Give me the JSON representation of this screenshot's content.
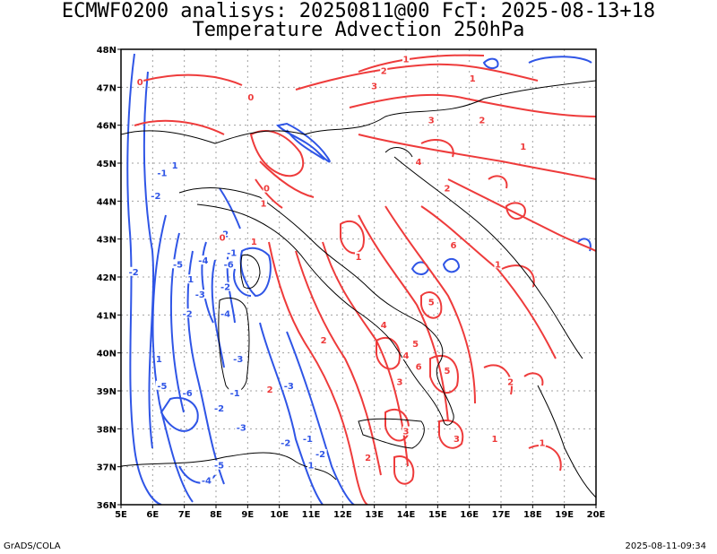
{
  "header": {
    "title_line1": "ECMWF0200 analisys: 20250811@00 FcT: 2025-08-13+18",
    "title_line2": "Temperature Advection 250hPa"
  },
  "footer": {
    "credit": "GrADS/COLA",
    "timestamp": "2025-08-11-09:34"
  },
  "map": {
    "lon_range": [
      5,
      20
    ],
    "lat_range": [
      36,
      48
    ],
    "lon_ticks": [
      "5E",
      "6E",
      "7E",
      "8E",
      "9E",
      "10E",
      "11E",
      "12E",
      "13E",
      "14E",
      "15E",
      "16E",
      "17E",
      "18E",
      "19E",
      "20E"
    ],
    "lat_ticks": [
      "36N",
      "37N",
      "38N",
      "39N",
      "40N",
      "41N",
      "42N",
      "43N",
      "44N",
      "45N",
      "46N",
      "47N",
      "48N"
    ],
    "grid": true,
    "colors": {
      "positive": "#ee3b3b",
      "negative": "#2f55e6",
      "coast": "#000000",
      "grid": "#a0a0a0"
    },
    "contour_labels": [
      {
        "t": "1",
        "lon": 14.0,
        "lat": 47.7,
        "c": "pos"
      },
      {
        "t": "2",
        "lon": 13.3,
        "lat": 47.4,
        "c": "pos"
      },
      {
        "t": "3",
        "lon": 13.0,
        "lat": 47.0,
        "c": "pos"
      },
      {
        "t": "1",
        "lon": 16.1,
        "lat": 47.2,
        "c": "pos"
      },
      {
        "t": "0",
        "lon": 5.6,
        "lat": 47.1,
        "c": "pos"
      },
      {
        "t": "0",
        "lon": 9.1,
        "lat": 46.7,
        "c": "pos"
      },
      {
        "t": "3",
        "lon": 14.8,
        "lat": 46.1,
        "c": "pos"
      },
      {
        "t": "2",
        "lon": 16.4,
        "lat": 46.1,
        "c": "pos"
      },
      {
        "t": "1",
        "lon": 17.7,
        "lat": 45.4,
        "c": "pos"
      },
      {
        "t": "4",
        "lon": 14.4,
        "lat": 45.0,
        "c": "pos"
      },
      {
        "t": "2",
        "lon": 15.3,
        "lat": 44.3,
        "c": "pos"
      },
      {
        "t": "1",
        "lon": 6.7,
        "lat": 44.9,
        "c": "neg"
      },
      {
        "t": "-1",
        "lon": 6.3,
        "lat": 44.7,
        "c": "neg"
      },
      {
        "t": "-2",
        "lon": 6.1,
        "lat": 44.1,
        "c": "neg"
      },
      {
        "t": "0",
        "lon": 9.6,
        "lat": 44.3,
        "c": "pos"
      },
      {
        "t": "1",
        "lon": 9.5,
        "lat": 43.9,
        "c": "pos"
      },
      {
        "t": "2",
        "lon": 8.3,
        "lat": 43.1,
        "c": "neg"
      },
      {
        "t": "0",
        "lon": 8.2,
        "lat": 43.0,
        "c": "pos"
      },
      {
        "t": "1",
        "lon": 9.2,
        "lat": 42.9,
        "c": "pos"
      },
      {
        "t": "-1",
        "lon": 8.5,
        "lat": 42.6,
        "c": "neg"
      },
      {
        "t": "-5",
        "lon": 6.8,
        "lat": 42.3,
        "c": "neg"
      },
      {
        "t": "-4",
        "lon": 7.6,
        "lat": 42.4,
        "c": "neg"
      },
      {
        "t": "-6",
        "lon": 8.4,
        "lat": 42.3,
        "c": "neg"
      },
      {
        "t": "-2",
        "lon": 5.4,
        "lat": 42.1,
        "c": "neg"
      },
      {
        "t": "1",
        "lon": 12.5,
        "lat": 42.5,
        "c": "pos"
      },
      {
        "t": "6",
        "lon": 15.5,
        "lat": 42.8,
        "c": "pos"
      },
      {
        "t": "1",
        "lon": 16.9,
        "lat": 42.3,
        "c": "pos"
      },
      {
        "t": "1",
        "lon": 7.2,
        "lat": 41.9,
        "c": "neg"
      },
      {
        "t": "-2",
        "lon": 8.3,
        "lat": 41.7,
        "c": "neg"
      },
      {
        "t": "-3",
        "lon": 7.5,
        "lat": 41.5,
        "c": "neg"
      },
      {
        "t": "-2",
        "lon": 7.1,
        "lat": 41.0,
        "c": "neg"
      },
      {
        "t": "-4",
        "lon": 8.3,
        "lat": 41.0,
        "c": "neg"
      },
      {
        "t": "5",
        "lon": 14.8,
        "lat": 41.3,
        "c": "pos"
      },
      {
        "t": "4",
        "lon": 13.3,
        "lat": 40.7,
        "c": "pos"
      },
      {
        "t": "2",
        "lon": 11.4,
        "lat": 40.3,
        "c": "pos"
      },
      {
        "t": "5",
        "lon": 14.3,
        "lat": 40.2,
        "c": "pos"
      },
      {
        "t": "4",
        "lon": 14.0,
        "lat": 39.9,
        "c": "pos"
      },
      {
        "t": "6",
        "lon": 14.4,
        "lat": 39.6,
        "c": "pos"
      },
      {
        "t": "5",
        "lon": 15.3,
        "lat": 39.5,
        "c": "pos"
      },
      {
        "t": "1",
        "lon": 6.2,
        "lat": 39.8,
        "c": "neg"
      },
      {
        "t": "-3",
        "lon": 8.7,
        "lat": 39.8,
        "c": "neg"
      },
      {
        "t": "-5",
        "lon": 6.3,
        "lat": 39.1,
        "c": "neg"
      },
      {
        "t": "-6",
        "lon": 7.1,
        "lat": 38.9,
        "c": "neg"
      },
      {
        "t": "-1",
        "lon": 8.6,
        "lat": 38.9,
        "c": "neg"
      },
      {
        "t": "-3",
        "lon": 10.3,
        "lat": 39.1,
        "c": "neg"
      },
      {
        "t": "2",
        "lon": 9.7,
        "lat": 39.0,
        "c": "pos"
      },
      {
        "t": "3",
        "lon": 13.8,
        "lat": 39.2,
        "c": "pos"
      },
      {
        "t": "2",
        "lon": 17.3,
        "lat": 39.2,
        "c": "pos"
      },
      {
        "t": "-2",
        "lon": 8.1,
        "lat": 38.5,
        "c": "neg"
      },
      {
        "t": "-3",
        "lon": 8.8,
        "lat": 38.0,
        "c": "neg"
      },
      {
        "t": "-2",
        "lon": 10.2,
        "lat": 37.6,
        "c": "neg"
      },
      {
        "t": "-1",
        "lon": 10.9,
        "lat": 37.7,
        "c": "neg"
      },
      {
        "t": "-2",
        "lon": 11.3,
        "lat": 37.3,
        "c": "neg"
      },
      {
        "t": "1",
        "lon": 11.0,
        "lat": 37.0,
        "c": "neg"
      },
      {
        "t": "3",
        "lon": 15.6,
        "lat": 37.7,
        "c": "pos"
      },
      {
        "t": "1",
        "lon": 16.8,
        "lat": 37.7,
        "c": "pos"
      },
      {
        "t": "2",
        "lon": 12.8,
        "lat": 37.2,
        "c": "pos"
      },
      {
        "t": "1",
        "lon": 18.3,
        "lat": 37.6,
        "c": "pos"
      },
      {
        "t": "-5",
        "lon": 8.1,
        "lat": 37.0,
        "c": "neg"
      },
      {
        "t": "-4",
        "lon": 7.7,
        "lat": 36.6,
        "c": "neg"
      },
      {
        "t": "3",
        "lon": 14.0,
        "lat": 37.9,
        "c": "pos"
      }
    ]
  }
}
